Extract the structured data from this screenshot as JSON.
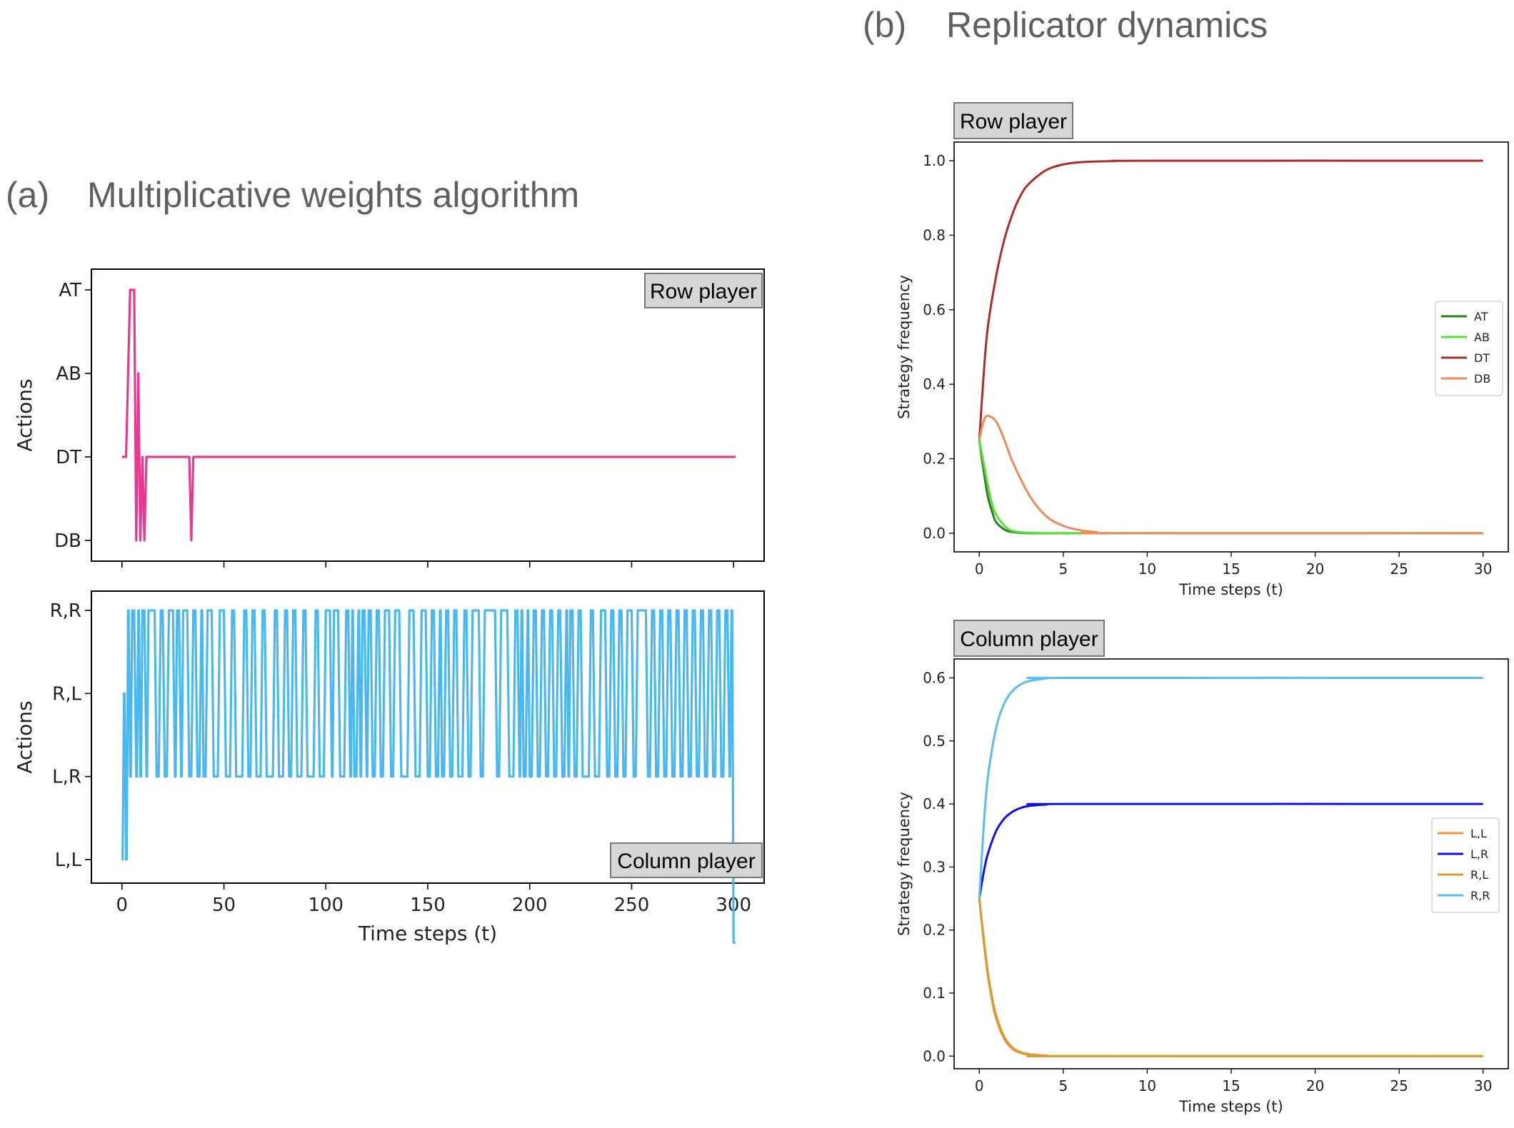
{
  "panel_a": {
    "letter": "(a)",
    "title": "Multiplicative weights algorithm"
  },
  "panel_b": {
    "letter": "(b)",
    "title": "Replicator dynamics"
  },
  "chart_data": [
    {
      "id": "mwa_row",
      "type": "line",
      "tag": "Row player",
      "ylabel": "Actions",
      "xlabel": "",
      "xlim": [
        -15,
        315
      ],
      "xticks": [
        0,
        50,
        100,
        150,
        200,
        250,
        300
      ],
      "y_categories": [
        "DB",
        "DT",
        "AB",
        "AT"
      ],
      "series": [
        {
          "color": "#e8388f",
          "values": [
            [
              0,
              "DT"
            ],
            [
              1,
              "DT"
            ],
            [
              2,
              "DT"
            ],
            [
              3,
              "AB"
            ],
            [
              4,
              "AT"
            ],
            [
              5,
              "AT"
            ],
            [
              6,
              "AT"
            ],
            [
              7,
              "DB"
            ],
            [
              8,
              "AB"
            ],
            [
              9,
              "DB"
            ],
            [
              10,
              "DT"
            ],
            [
              11,
              "DB"
            ],
            [
              12,
              "DT"
            ],
            [
              33,
              "DT"
            ],
            [
              34,
              "DB"
            ],
            [
              35,
              "DT"
            ],
            [
              301,
              "DT"
            ]
          ]
        }
      ]
    },
    {
      "id": "mwa_col",
      "type": "line",
      "tag": "Column player",
      "ylabel": "Actions",
      "xlabel": "Time steps (t)",
      "xlim": [
        -15,
        315
      ],
      "xticks": [
        0,
        50,
        100,
        150,
        200,
        250,
        300
      ],
      "y_categories": [
        "L,L",
        "L,R",
        "R,L",
        "R,R"
      ],
      "series": [
        {
          "color": "#4ab8f0",
          "switch_times": [
            0,
            1,
            2,
            3,
            4,
            5,
            7,
            8,
            9,
            10,
            12,
            13,
            17,
            19,
            21,
            23,
            26,
            27,
            29,
            30,
            33,
            35,
            37,
            39,
            40,
            42,
            45,
            48,
            51,
            54,
            56,
            60,
            62,
            64,
            66,
            69,
            71,
            75,
            77,
            80,
            82,
            84,
            86,
            89,
            91,
            95,
            97,
            100,
            103,
            104,
            107,
            110,
            112,
            113,
            114,
            116,
            117,
            118,
            120,
            121,
            123,
            125,
            127,
            129,
            132,
            134,
            137,
            141,
            144,
            147,
            150,
            152,
            154,
            156,
            157,
            159,
            161,
            163,
            165,
            168,
            170,
            172,
            176,
            178,
            184,
            186,
            190,
            193,
            195,
            196,
            197,
            199,
            200,
            202,
            204,
            206,
            208,
            210,
            212,
            214,
            216,
            218,
            219,
            220,
            222,
            224,
            226,
            230,
            232,
            235,
            238,
            240,
            242,
            244,
            246,
            248,
            251,
            253,
            258,
            260,
            262,
            264,
            266,
            268,
            270,
            272,
            274,
            276,
            278,
            280,
            282,
            284,
            286,
            288,
            290,
            292,
            294,
            296,
            298,
            299,
            300,
            301
          ],
          "switch_levels": [
            "L,L",
            "R,L",
            "L,L",
            "R,R",
            "L,R",
            "R,R",
            "L,R",
            "R,R",
            "L,R",
            "R,R",
            "L,R",
            "R,R",
            "L,R",
            "R,R",
            "L,R",
            "R,R",
            "L,R",
            "R,R",
            "L,R",
            "R,R",
            "L,R",
            "R,R",
            "L,R",
            "R,R",
            "L,R",
            "R,R",
            "L,R",
            "R,R",
            "L,R",
            "R,R",
            "L,R",
            "R,R",
            "L,R",
            "R,R",
            "L,R",
            "R,R",
            "L,R",
            "R,R",
            "L,R",
            "R,R",
            "L,R",
            "R,R",
            "L,R",
            "R,R",
            "L,R",
            "R,R",
            "L,R",
            "R,R",
            "L,R",
            "R,R",
            "L,R",
            "R,R",
            "L,R",
            "R,R",
            "L,R",
            "R,R",
            "L,R",
            "R,R",
            "L,R",
            "R,R",
            "L,R",
            "R,R",
            "L,R",
            "R,R",
            "L,R",
            "R,R",
            "L,R",
            "R,R",
            "L,R",
            "R,R",
            "L,R",
            "R,R",
            "L,R",
            "R,R",
            "L,R",
            "R,R",
            "L,R",
            "R,R",
            "L,R",
            "R,R",
            "L,R",
            "R,R",
            "L,R",
            "R,R",
            "L,R",
            "R,R",
            "L,R",
            "R,R",
            "L,R",
            "R,R",
            "L,R",
            "R,R",
            "L,R",
            "R,R",
            "L,R",
            "R,R",
            "L,R",
            "R,R",
            "L,R",
            "R,R",
            "L,R",
            "R,R",
            "L,R",
            "R,R",
            "L,R",
            "R,R",
            "L,R",
            "R,R",
            "L,R",
            "R,R",
            "L,R",
            "R,R",
            "L,R",
            "R,R",
            "L,R",
            "R,R",
            "L,R",
            "R,R",
            "L,R",
            "R,R",
            "L,R",
            "R,R",
            "L,R",
            "R,R",
            "L,R",
            "R,R",
            "L,R",
            "R,R",
            "L,R",
            "R,R",
            "L,R",
            "R,R",
            "L,R",
            "R,R",
            "L,R",
            "R,R",
            "L,R",
            "R,R",
            "L,R",
            "R,R"
          ]
        }
      ]
    },
    {
      "id": "rd_row",
      "type": "line",
      "tag": "Row player",
      "ylabel": "Strategy frequency",
      "xlabel": "Time steps (t)",
      "xlim": [
        -1.5,
        31.5
      ],
      "ylim": [
        -0.05,
        1.05
      ],
      "xticks": [
        0,
        5,
        10,
        15,
        20,
        25,
        30
      ],
      "yticks": [
        0.0,
        0.2,
        0.4,
        0.6,
        0.8,
        1.0
      ],
      "legend": "center-right",
      "series": [
        {
          "name": "AT",
          "color": "#2e7d1e",
          "x": [
            0,
            0.25,
            0.5,
            0.75,
            1,
            1.5,
            2,
            3,
            5,
            10,
            30
          ],
          "y": [
            0.25,
            0.17,
            0.1,
            0.06,
            0.03,
            0.01,
            0.003,
            0.0,
            0.0,
            0.0,
            0.0
          ]
        },
        {
          "name": "AB",
          "color": "#55e035",
          "x": [
            0,
            0.25,
            0.5,
            0.75,
            1,
            1.5,
            2,
            3,
            5,
            10,
            30
          ],
          "y": [
            0.25,
            0.19,
            0.13,
            0.08,
            0.05,
            0.02,
            0.006,
            0.001,
            0.0,
            0.0,
            0.0
          ]
        },
        {
          "name": "DT",
          "color": "#a82e2a",
          "x": [
            0,
            0.25,
            0.5,
            1,
            1.5,
            2,
            2.5,
            3,
            4,
            5,
            6,
            8,
            10,
            30
          ],
          "y": [
            0.25,
            0.42,
            0.55,
            0.69,
            0.79,
            0.86,
            0.91,
            0.94,
            0.975,
            0.99,
            0.996,
            0.999,
            1.0,
            1.0
          ]
        },
        {
          "name": "DB",
          "color": "#ee8a5c",
          "x": [
            0,
            0.25,
            0.5,
            1,
            1.5,
            2,
            3,
            4,
            5,
            6,
            7,
            8,
            30
          ],
          "y": [
            0.25,
            0.3,
            0.315,
            0.3,
            0.25,
            0.19,
            0.1,
            0.045,
            0.02,
            0.008,
            0.003,
            0.0,
            0.0
          ]
        }
      ]
    },
    {
      "id": "rd_col",
      "type": "line",
      "tag": "Column player",
      "ylabel": "Strategy frequency",
      "xlabel": "Time steps (t)",
      "xlim": [
        -1.5,
        31.5
      ],
      "ylim": [
        -0.02,
        0.63
      ],
      "xticks": [
        0,
        5,
        10,
        15,
        20,
        25,
        30
      ],
      "yticks": [
        0.0,
        0.1,
        0.2,
        0.3,
        0.4,
        0.5,
        0.6
      ],
      "legend": "center-right",
      "series": [
        {
          "name": "L,L",
          "color": "#f0923a",
          "x": [
            0,
            0.25,
            0.5,
            0.75,
            1,
            1.5,
            2,
            2.5,
            3,
            4,
            5,
            30
          ],
          "y": [
            0.25,
            0.19,
            0.135,
            0.095,
            0.065,
            0.03,
            0.013,
            0.006,
            0.003,
            0.001,
            0.0,
            0.0
          ]
        },
        {
          "name": "L,R",
          "color": "#1010e0",
          "x": [
            0,
            0.25,
            0.5,
            1,
            1.5,
            2,
            2.5,
            3,
            4,
            5,
            30
          ],
          "y": [
            0.25,
            0.29,
            0.32,
            0.357,
            0.377,
            0.388,
            0.394,
            0.397,
            0.399,
            0.4,
            0.4
          ]
        },
        {
          "name": "R,L",
          "color": "#d99a30",
          "x": [
            0,
            0.25,
            0.5,
            0.75,
            1,
            1.5,
            2,
            2.5,
            3,
            4,
            5,
            30
          ],
          "y": [
            0.25,
            0.185,
            0.13,
            0.09,
            0.06,
            0.027,
            0.011,
            0.005,
            0.002,
            0.0,
            0.0,
            0.0
          ]
        },
        {
          "name": "R,R",
          "color": "#5bbcf0",
          "x": [
            0,
            0.25,
            0.5,
            1,
            1.5,
            2,
            2.5,
            3,
            4,
            5,
            30
          ],
          "y": [
            0.25,
            0.36,
            0.44,
            0.52,
            0.56,
            0.58,
            0.59,
            0.595,
            0.599,
            0.6,
            0.6
          ]
        }
      ]
    }
  ]
}
